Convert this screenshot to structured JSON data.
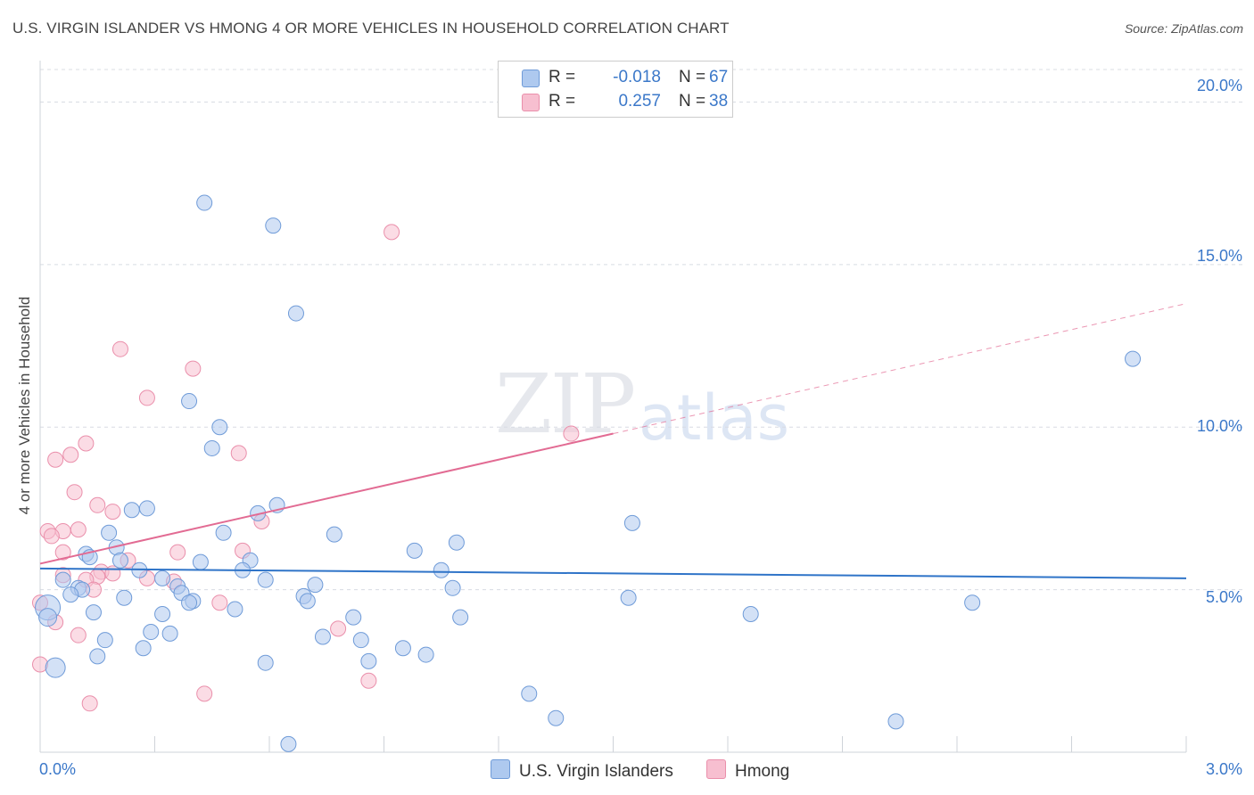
{
  "title": "U.S. VIRGIN ISLANDER VS HMONG 4 OR MORE VEHICLES IN HOUSEHOLD CORRELATION CHART",
  "source": "Source: ZipAtlas.com",
  "watermark": {
    "zip": "ZIP",
    "atlas": "atlas"
  },
  "legend": {
    "r_label": "R =",
    "n_label": "N =",
    "rows": [
      {
        "series": "U.S. Virgin Islanders",
        "r": "-0.018",
        "n": "67"
      },
      {
        "series": "Hmong",
        "r": "0.257",
        "n": "38"
      }
    ]
  },
  "colors": {
    "blue_fill": "#aec9ef",
    "blue_stroke": "#6f9bd8",
    "blue_line": "#2f74c8",
    "pink_fill": "#f7bfd0",
    "pink_stroke": "#ea8fab",
    "pink_line": "#e26b93",
    "tick_text": "#3b78c9",
    "grid": "#d8dce3"
  },
  "chart_data": {
    "type": "scatter",
    "title": "U.S. VIRGIN ISLANDER VS HMONG 4 OR MORE VEHICLES IN HOUSEHOLD CORRELATION CHART",
    "xlabel": "",
    "ylabel": "4 or more Vehicles in Household",
    "xlim": [
      0,
      3.0
    ],
    "ylim": [
      0,
      21
    ],
    "x_ticks": [
      {
        "v": 0,
        "label": "0.0%"
      },
      {
        "v": 3.0,
        "label": "3.0%"
      }
    ],
    "y_ticks": [
      {
        "v": 5,
        "label": "5.0%"
      },
      {
        "v": 10,
        "label": "10.0%"
      },
      {
        "v": 15,
        "label": "15.0%"
      },
      {
        "v": 20,
        "label": "20.0%"
      }
    ],
    "grid": "horizontal dashed",
    "legend_position": "bottom-center",
    "series": [
      {
        "name": "U.S. Virgin Islanders",
        "trend": {
          "x0": 0,
          "y0": 5.65,
          "x1": 3.0,
          "y1": 5.35
        },
        "points": [
          [
            0.43,
            16.9
          ],
          [
            0.61,
            16.2
          ],
          [
            0.67,
            13.5
          ],
          [
            2.86,
            12.1
          ],
          [
            0.39,
            10.8
          ],
          [
            0.47,
            10.0
          ],
          [
            0.45,
            9.35
          ],
          [
            0.28,
            7.5
          ],
          [
            0.24,
            7.45
          ],
          [
            0.62,
            7.6
          ],
          [
            0.57,
            7.35
          ],
          [
            1.55,
            7.05
          ],
          [
            0.18,
            6.75
          ],
          [
            0.48,
            6.75
          ],
          [
            0.77,
            6.7
          ],
          [
            1.09,
            6.45
          ],
          [
            0.2,
            6.3
          ],
          [
            0.12,
            6.1
          ],
          [
            0.13,
            6.0
          ],
          [
            0.21,
            5.9
          ],
          [
            0.42,
            5.85
          ],
          [
            0.55,
            5.9
          ],
          [
            0.98,
            6.2
          ],
          [
            0.26,
            5.6
          ],
          [
            0.53,
            5.6
          ],
          [
            1.05,
            5.6
          ],
          [
            0.06,
            5.3
          ],
          [
            0.32,
            5.35
          ],
          [
            0.59,
            5.3
          ],
          [
            0.72,
            5.15
          ],
          [
            0.1,
            5.05
          ],
          [
            0.11,
            5.0
          ],
          [
            0.36,
            5.1
          ],
          [
            0.08,
            4.85
          ],
          [
            0.37,
            4.9
          ],
          [
            1.08,
            5.05
          ],
          [
            0.22,
            4.75
          ],
          [
            0.4,
            4.65
          ],
          [
            0.39,
            4.6
          ],
          [
            0.69,
            4.8
          ],
          [
            0.7,
            4.65
          ],
          [
            1.54,
            4.75
          ],
          [
            2.44,
            4.6
          ],
          [
            0.02,
            4.45
          ],
          [
            0.51,
            4.4
          ],
          [
            0.14,
            4.3
          ],
          [
            0.32,
            4.25
          ],
          [
            1.86,
            4.25
          ],
          [
            0.82,
            4.15
          ],
          [
            1.1,
            4.15
          ],
          [
            0.02,
            4.15
          ],
          [
            0.29,
            3.7
          ],
          [
            0.34,
            3.65
          ],
          [
            0.74,
            3.55
          ],
          [
            0.84,
            3.45
          ],
          [
            0.17,
            3.45
          ],
          [
            0.27,
            3.2
          ],
          [
            0.95,
            3.2
          ],
          [
            1.01,
            3.0
          ],
          [
            0.15,
            2.95
          ],
          [
            0.59,
            2.75
          ],
          [
            0.86,
            2.8
          ],
          [
            0.04,
            2.6
          ],
          [
            1.28,
            1.8
          ],
          [
            1.35,
            1.05
          ],
          [
            2.24,
            0.95
          ],
          [
            0.65,
            0.25
          ]
        ]
      },
      {
        "name": "Hmong",
        "trend": {
          "x0": 0,
          "y0": 5.8,
          "x1": 1.5,
          "y1": 9.8,
          "dash_x1": 3.0,
          "dash_y1": 13.8
        },
        "points": [
          [
            0.92,
            16.0
          ],
          [
            0.21,
            12.4
          ],
          [
            0.28,
            10.9
          ],
          [
            0.4,
            11.8
          ],
          [
            1.39,
            9.8
          ],
          [
            0.12,
            9.5
          ],
          [
            0.08,
            9.15
          ],
          [
            0.52,
            9.2
          ],
          [
            0.04,
            9.0
          ],
          [
            0.09,
            8.0
          ],
          [
            0.15,
            7.6
          ],
          [
            0.19,
            7.4
          ],
          [
            0.58,
            7.1
          ],
          [
            0.02,
            6.8
          ],
          [
            0.1,
            6.85
          ],
          [
            0.06,
            6.8
          ],
          [
            0.03,
            6.65
          ],
          [
            0.36,
            6.15
          ],
          [
            0.53,
            6.2
          ],
          [
            0.06,
            6.15
          ],
          [
            0.23,
            5.9
          ],
          [
            0.16,
            5.55
          ],
          [
            0.19,
            5.5
          ],
          [
            0.06,
            5.45
          ],
          [
            0.28,
            5.35
          ],
          [
            0.15,
            5.4
          ],
          [
            0.12,
            5.3
          ],
          [
            0.35,
            5.25
          ],
          [
            0.14,
            5.0
          ],
          [
            0.47,
            4.6
          ],
          [
            0.0,
            4.6
          ],
          [
            0.04,
            4.0
          ],
          [
            0.78,
            3.8
          ],
          [
            0.1,
            3.6
          ],
          [
            0.0,
            2.7
          ],
          [
            0.86,
            2.2
          ],
          [
            0.43,
            1.8
          ],
          [
            0.13,
            1.5
          ]
        ]
      }
    ]
  }
}
